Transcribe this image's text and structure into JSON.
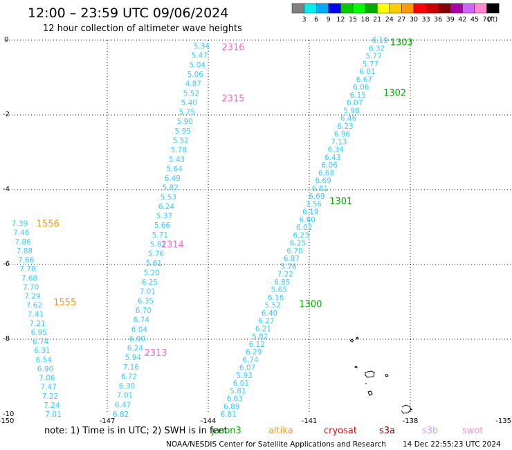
{
  "header": {
    "title": "12:00 – 23:59 UTC 09/06/2024",
    "subtitle": "12 hour collection of altimeter wave heights"
  },
  "legend": {
    "colors": [
      "#808080",
      "#00eeee",
      "#00aaff",
      "#0000ff",
      "#00cc00",
      "#00ff00",
      "#00aa00",
      "#ffff00",
      "#ffcc00",
      "#ff9900",
      "#ff0000",
      "#cc0000",
      "#880000",
      "#aa00aa",
      "#cc66ff",
      "#ff88cc",
      "#000000"
    ],
    "labels": [
      "3",
      "6",
      "9",
      "12",
      "15",
      "18",
      "21",
      "24",
      "27",
      "30",
      "33",
      "36",
      "39",
      "42",
      "45",
      "70"
    ],
    "unit": "(ft)"
  },
  "axes": {
    "x_labels": [
      "-150",
      "-147",
      "-144",
      "-141",
      "-138",
      "-135"
    ],
    "y_labels": [
      "0",
      "-2",
      "-4",
      "-6",
      "-8",
      "-10"
    ]
  },
  "passes": [
    {
      "id": "2316",
      "color": "#ff66cc",
      "tag_lon": -143.6,
      "tag_lat": -0.18
    },
    {
      "id": "2315",
      "color": "#ff66cc",
      "tag_lon": -143.6,
      "tag_lat": -1.55
    },
    {
      "id": "2314",
      "color": "#ff66cc",
      "tag_lon": -145.4,
      "tag_lat": -5.45
    },
    {
      "id": "2313",
      "color": "#ff66cc",
      "tag_lon": -145.9,
      "tag_lat": -8.35
    },
    {
      "id": "1556",
      "color": "#ff9900",
      "tag_lon": -149.1,
      "tag_lat": -4.9
    },
    {
      "id": "1555",
      "color": "#ff9900",
      "tag_lon": -148.6,
      "tag_lat": -7.0
    },
    {
      "id": "1303",
      "color": "#00aa00",
      "tag_lon": -138.6,
      "tag_lat": -0.05
    },
    {
      "id": "1302",
      "color": "#00aa00",
      "tag_lon": -138.8,
      "tag_lat": -1.4
    },
    {
      "id": "1301",
      "color": "#00aa00",
      "tag_lon": -140.4,
      "tag_lat": -4.3
    },
    {
      "id": "1300",
      "color": "#00aa00",
      "tag_lon": -141.3,
      "tag_lat": -7.05
    }
  ],
  "tracks": [
    {
      "name": "track-2316",
      "color": "#33ccff",
      "start": [
        -144.2,
        -0.15
      ],
      "end": [
        -146.6,
        -10.0
      ],
      "values": [
        "5.34",
        "5.47",
        "5.04",
        "5.06",
        "4.87",
        "5.52",
        "5.40",
        "5.75",
        "5.90",
        "5.95",
        "5.52",
        "5.78",
        "5.43",
        "5.64",
        "6.49",
        "5.82",
        "5.53",
        "6.24",
        "5.37",
        "5.66",
        "5.71",
        "5.81",
        "5.76",
        "5.61",
        "5.20",
        "6.25",
        "7.01",
        "6.35",
        "6.70",
        "6.74",
        "6.04",
        "6.90",
        "6.24",
        "5.94",
        "7.16",
        "6.72",
        "6.30",
        "7.01",
        "6.47",
        "6.82"
      ]
    },
    {
      "name": "track-1556",
      "color": "#33ccff",
      "start": [
        -149.6,
        -4.9
      ],
      "end": [
        -148.6,
        -10.0
      ],
      "values": [
        "7.39",
        "7.46",
        "7.86",
        "7.88",
        "7.66",
        "7.78",
        "7.68",
        "7.70",
        "7.29",
        "7.62",
        "7.41",
        "7.21",
        "6.95",
        "6.74",
        "6.31",
        "6.54",
        "6.90",
        "7.06",
        "7.47",
        "7.22",
        "7.24",
        "7.01"
      ]
    },
    {
      "name": "track-1303",
      "color": "#33ccff",
      "start": [
        -138.9,
        0.0
      ],
      "end": [
        -143.4,
        -10.0
      ],
      "values": [
        "6.19",
        "6.32",
        "5.77",
        "5.77",
        "6.01",
        "6.67",
        "6.06",
        "6.15",
        "6.07",
        "5.98",
        "6.46",
        "6.23",
        "6.96",
        "7.13",
        "6.34",
        "6.43",
        "6.06",
        "6.68",
        "6.69",
        "6.81",
        "6.69",
        "7.56",
        "6.19",
        "6.60",
        "6.02",
        "6.23",
        "6.25",
        "6.70",
        "6.87",
        "5.76",
        "7.22",
        "6.85",
        "5.65",
        "6.16",
        "5.52",
        "6.40",
        "6.27",
        "6.21",
        "5.82",
        "6.12",
        "6.29",
        "6.74",
        "6.07",
        "5.93",
        "6.01",
        "5.81",
        "6.63",
        "6.89",
        "6.81"
      ]
    }
  ],
  "note": {
    "text": "note:  1) Time is in UTC;  2) SWH is in feet",
    "missions": [
      {
        "name": "jason3",
        "color": "#00aa00"
      },
      {
        "name": "altika",
        "color": "#ff9900"
      },
      {
        "name": "cryosat",
        "color": "#ff0000"
      },
      {
        "name": "s3a",
        "color": "#880000"
      },
      {
        "name": "s3b",
        "color": "#cc99ff"
      },
      {
        "name": "swot",
        "color": "#ff88cc"
      }
    ]
  },
  "footer": {
    "agency": "NOAA/NESDIS Center for Satellite Applications and Research",
    "timestamp": "14 Dec 22:55:23 UTC 2024"
  }
}
